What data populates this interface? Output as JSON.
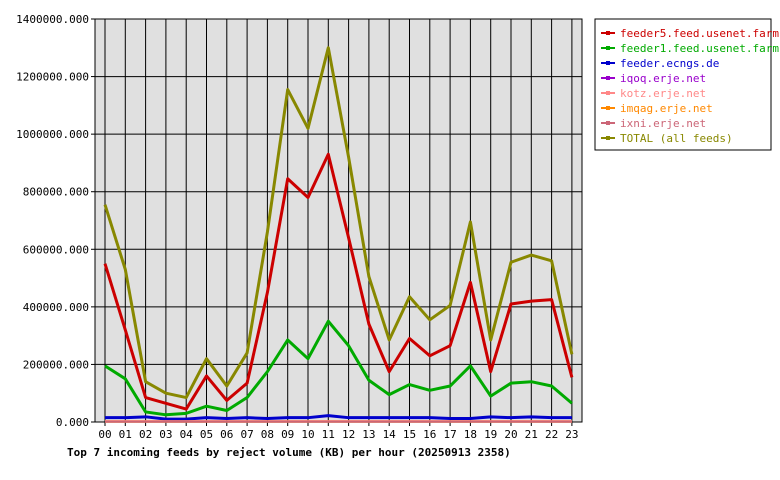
{
  "chart_data": {
    "type": "line",
    "title": "Top 7 incoming feeds by reject volume (KB) per hour (20250913 2358)",
    "x": [
      "00",
      "01",
      "02",
      "03",
      "04",
      "05",
      "06",
      "07",
      "08",
      "09",
      "10",
      "11",
      "12",
      "13",
      "14",
      "15",
      "16",
      "17",
      "18",
      "19",
      "20",
      "21",
      "22",
      "23"
    ],
    "y_ticks": [
      "0.000",
      "200000.000",
      "400000.000",
      "600000.000",
      "800000.000",
      "1000000.000",
      "1200000.000",
      "1400000.000"
    ],
    "ylim": [
      0,
      1400000
    ],
    "grid": true,
    "legend_position": "right",
    "series": [
      {
        "name": "feeder5.feed.usenet.farm",
        "color": "#cc0000",
        "values": [
          550000,
          320000,
          85000,
          65000,
          45000,
          160000,
          75000,
          135000,
          450000,
          845000,
          780000,
          930000,
          640000,
          340000,
          175000,
          290000,
          230000,
          265000,
          485000,
          175000,
          410000,
          420000,
          425000,
          155000
        ]
      },
      {
        "name": "feeder1.feed.usenet.farm",
        "color": "#00aa00",
        "values": [
          195000,
          150000,
          35000,
          25000,
          30000,
          55000,
          40000,
          85000,
          175000,
          285000,
          220000,
          350000,
          265000,
          145000,
          95000,
          130000,
          110000,
          125000,
          195000,
          90000,
          135000,
          140000,
          125000,
          65000
        ]
      },
      {
        "name": "feeder.ecngs.de",
        "color": "#0000cc",
        "values": [
          15000,
          15000,
          18000,
          10000,
          10000,
          15000,
          12000,
          15000,
          12000,
          15000,
          15000,
          22000,
          15000,
          15000,
          15000,
          15000,
          15000,
          12000,
          12000,
          18000,
          15000,
          18000,
          15000,
          15000
        ]
      },
      {
        "name": "iqoq.erje.net",
        "color": "#9900cc",
        "values": [
          2000,
          2000,
          2000,
          2000,
          2000,
          2000,
          2000,
          2000,
          2000,
          2000,
          2000,
          2000,
          2000,
          2000,
          2000,
          2000,
          2000,
          2000,
          2000,
          2000,
          2000,
          2000,
          2000,
          2000
        ]
      },
      {
        "name": "kotz.erje.net",
        "color": "#ff8888",
        "values": [
          3000,
          3000,
          3000,
          3000,
          3000,
          3000,
          3000,
          3000,
          3000,
          3000,
          3000,
          3000,
          3000,
          3000,
          3000,
          3000,
          3000,
          3000,
          3000,
          3000,
          3000,
          3000,
          3000,
          3000
        ]
      },
      {
        "name": "imqag.erje.net",
        "color": "#ff8800",
        "values": [
          1000,
          1000,
          1000,
          1000,
          1000,
          1000,
          1000,
          1000,
          1000,
          1000,
          1000,
          1000,
          1000,
          1000,
          1000,
          1000,
          1000,
          1000,
          1000,
          1000,
          1000,
          1000,
          1000,
          1000
        ]
      },
      {
        "name": "ixni.erje.net",
        "color": "#cc6677",
        "values": [
          1000,
          1000,
          1000,
          1000,
          1000,
          1000,
          1000,
          1000,
          1000,
          1000,
          1000,
          1000,
          1000,
          1000,
          1000,
          1000,
          1000,
          1000,
          1000,
          1000,
          1000,
          1000,
          1000,
          1000
        ]
      },
      {
        "name": "TOTAL (all feeds)",
        "color": "#888800",
        "values": [
          755000,
          530000,
          140000,
          100000,
          85000,
          220000,
          125000,
          240000,
          660000,
          1155000,
          1020000,
          1300000,
          920000,
          505000,
          285000,
          435000,
          355000,
          405000,
          695000,
          285000,
          555000,
          580000,
          560000,
          235000
        ]
      }
    ]
  }
}
